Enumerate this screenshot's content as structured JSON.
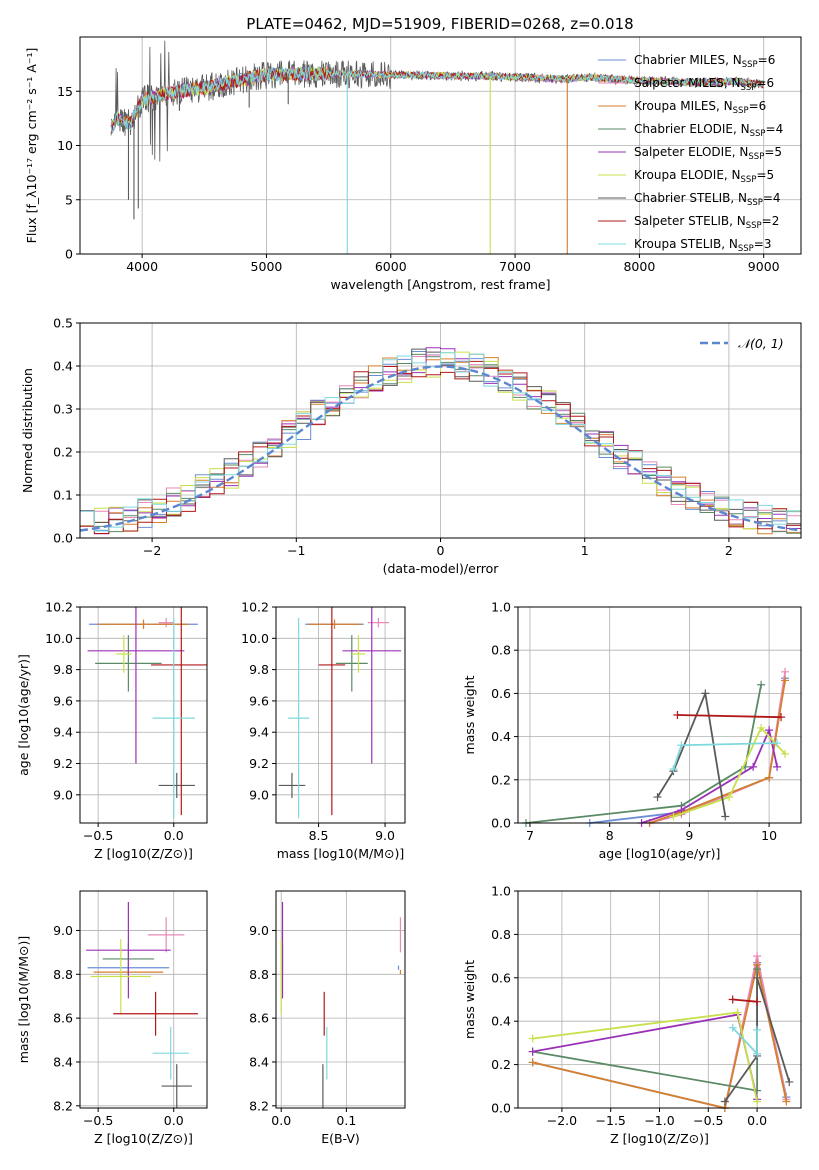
{
  "figure": {
    "suptitle": "PLATE=0462, MJD=51909, FIBERID=0268, z=0.018"
  },
  "series_colors": [
    "#6a8fd6",
    "#e889b8",
    "#d67f2c",
    "#5a8a66",
    "#9b30b8",
    "#c8e04a",
    "#5a5a5a",
    "#b01818",
    "#7fd8dc"
  ],
  "chart_data": [
    {
      "id": "spectrum",
      "type": "line",
      "title": "PLATE=0462, MJD=51909, FIBERID=0268, z=0.018",
      "xlabel": "wavelength [Angstrom, rest frame]",
      "ylabel": "Flux [f_λ10⁻¹⁷ erg cm⁻² s⁻¹ A⁻¹]",
      "xlim": [
        3500,
        9300
      ],
      "ylim": [
        0,
        20
      ],
      "xticks": [
        4000,
        5000,
        6000,
        7000,
        8000,
        9000
      ],
      "yticks": [
        0,
        5,
        10,
        15
      ],
      "legend_position": "top-right",
      "legend": [
        "Chabrier MILES, NSSP=6",
        "Salpeter MILES, NSSP=6",
        "Kroupa MILES, NSSP=6",
        "Chabrier ELODIE, NSSP=4",
        "Salpeter ELODIE, NSSP=5",
        "Kroupa ELODIE, NSSP=5",
        "Chabrier STELIB, NSSP=4",
        "Salpeter STELIB, NSSP=2",
        "Kroupa STELIB, NSSP=3"
      ],
      "legend_labels": [
        {
          "name": "Chabrier MILES, N",
          "sub": "SSP",
          "eq": "=6"
        },
        {
          "name": "Salpeter MILES, N",
          "sub": "SSP",
          "eq": "=6"
        },
        {
          "name": "Kroupa MILES, N",
          "sub": "SSP",
          "eq": "=6"
        },
        {
          "name": "Chabrier ELODIE, N",
          "sub": "SSP",
          "eq": "=4"
        },
        {
          "name": "Salpeter ELODIE, N",
          "sub": "SSP",
          "eq": "=5"
        },
        {
          "name": "Kroupa ELODIE, N",
          "sub": "SSP",
          "eq": "=5"
        },
        {
          "name": "Chabrier STELIB, N",
          "sub": "SSP",
          "eq": "=4"
        },
        {
          "name": "Salpeter STELIB, N",
          "sub": "SSP",
          "eq": "=2"
        },
        {
          "name": "Kroupa STELIB, N",
          "sub": "SSP",
          "eq": "=3"
        }
      ],
      "continuum": {
        "x": [
          3750,
          3800,
          3900,
          3950,
          4000,
          4100,
          4200,
          4300,
          4500,
          4700,
          4900,
          5000,
          5200,
          5500,
          5700,
          6000,
          6200,
          6500,
          6800,
          7000,
          7200,
          7400,
          7600,
          7800,
          8000,
          8200,
          8500,
          8800,
          9000
        ],
        "y": [
          11.5,
          12.5,
          12,
          13,
          14.2,
          14.5,
          14.8,
          15,
          15.3,
          15.8,
          16.3,
          16.5,
          16.6,
          16.6,
          16.6,
          16.5,
          16.5,
          16.4,
          16.4,
          16.3,
          16.2,
          16.1,
          16.3,
          16.1,
          16.0,
          15.9,
          15.8,
          15.9,
          15.6
        ]
      },
      "absorption_features": [
        {
          "x": 3890,
          "y": 5
        },
        {
          "x": 3934,
          "y": 3.2
        },
        {
          "x": 3969,
          "y": 4.2
        },
        {
          "x": 4101,
          "y": 11.5
        },
        {
          "x": 4300,
          "y": 13.2
        },
        {
          "x": 4861,
          "y": 13.5
        },
        {
          "x": 5175,
          "y": 13.8
        },
        {
          "x": 5650,
          "y": 0
        },
        {
          "x": 6800,
          "y": 0
        },
        {
          "x": 7420,
          "y": 0
        }
      ]
    },
    {
      "id": "residuals",
      "type": "histogram",
      "xlabel": "(data-model)/error",
      "ylabel": "Normed distribution",
      "xlim": [
        -2.5,
        2.5
      ],
      "ylim": [
        0,
        0.5
      ],
      "xticks": [
        -2,
        -1,
        0,
        1,
        2
      ],
      "yticks": [
        0.0,
        0.1,
        0.2,
        0.3,
        0.4,
        0.5
      ],
      "bin_width": 0.1,
      "reference_curve": "N(0,1)",
      "legend_position": "top-right",
      "legend": [
        "𝒩(0, 1)"
      ]
    },
    {
      "id": "age_vs_Z",
      "type": "scatter",
      "xlabel": "Z [log10(Z/Z⊙)]",
      "ylabel": "age  [log10(age/yr)]",
      "xlim": [
        -0.62,
        0.22
      ],
      "ylim": [
        8.82,
        10.2
      ],
      "xticks": [
        -0.5,
        0.0
      ],
      "yticks": [
        9.0,
        9.2,
        9.4,
        9.6,
        9.8,
        10.0,
        10.2
      ],
      "points": [
        {
          "series": 0,
          "x": -0.2,
          "xerr": 0.36,
          "y": 10.09,
          "yerr": 0.02
        },
        {
          "series": 1,
          "x": -0.05,
          "xerr": 0.05,
          "y": 10.1,
          "yerr": 0.03
        },
        {
          "series": 2,
          "x": -0.2,
          "xerr": 0.3,
          "y": 10.09,
          "yerr": 0.03
        },
        {
          "series": 3,
          "x": -0.3,
          "xerr": 0.22,
          "y": 9.84,
          "yerr": 0.18
        },
        {
          "series": 4,
          "x": -0.25,
          "xerr": 0.32,
          "y": 9.92,
          "yerr": 0.72
        },
        {
          "series": 5,
          "x": -0.33,
          "xerr": 0.05,
          "y": 9.9,
          "yerr": 0.12
        },
        {
          "series": 6,
          "x": 0.02,
          "xerr": 0.12,
          "y": 9.06,
          "yerr": 0.08
        },
        {
          "series": 7,
          "x": 0.05,
          "xerr": 0.2,
          "y": 9.83,
          "yerr": 0.96
        },
        {
          "series": 8,
          "x": 0.0,
          "xerr": 0.14,
          "y": 9.49,
          "yerr": 0.64
        }
      ]
    },
    {
      "id": "age_vs_mass",
      "type": "scatter",
      "xlabel": "mass [log10(M/M⊙)]",
      "ylabel": "",
      "xlim": [
        8.18,
        9.15
      ],
      "ylim": [
        8.82,
        10.2
      ],
      "xticks": [
        8.5,
        9.0
      ],
      "yticks": [
        9.0,
        9.2,
        9.4,
        9.6,
        9.8,
        10.0,
        10.2
      ],
      "points": [
        {
          "series": 0,
          "x": 8.62,
          "xerr": 0.22,
          "y": 10.09,
          "yerr": 0.02
        },
        {
          "series": 1,
          "x": 8.95,
          "xerr": 0.08,
          "y": 10.1,
          "yerr": 0.03
        },
        {
          "series": 2,
          "x": 8.62,
          "xerr": 0.2,
          "y": 10.09,
          "yerr": 0.03
        },
        {
          "series": 3,
          "x": 8.75,
          "xerr": 0.12,
          "y": 9.84,
          "yerr": 0.18
        },
        {
          "series": 4,
          "x": 8.9,
          "xerr": 0.22,
          "y": 9.92,
          "yerr": 0.72
        },
        {
          "series": 5,
          "x": 8.8,
          "xerr": 0.05,
          "y": 9.9,
          "yerr": 0.12
        },
        {
          "series": 6,
          "x": 8.3,
          "xerr": 0.1,
          "y": 9.06,
          "yerr": 0.08
        },
        {
          "series": 7,
          "x": 8.6,
          "xerr": 0.1,
          "y": 9.83,
          "yerr": 0.96
        },
        {
          "series": 8,
          "x": 8.35,
          "xerr": 0.08,
          "y": 9.49,
          "yerr": 0.64
        }
      ]
    },
    {
      "id": "weight_vs_age",
      "type": "line",
      "xlabel": "age  [log10(age/yr)]",
      "ylabel": "mass weight",
      "xlim": [
        6.85,
        10.4
      ],
      "ylim": [
        0,
        1.0
      ],
      "xticks": [
        7,
        8,
        9,
        10
      ],
      "yticks": [
        0.0,
        0.2,
        0.4,
        0.6,
        0.8,
        1.0
      ],
      "series": [
        {
          "x": [
            7.75,
            8.9,
            10.0,
            10.2
          ],
          "y": [
            0.0,
            0.05,
            0.21,
            0.67
          ]
        },
        {
          "x": [
            8.5,
            8.9,
            10.0,
            10.2
          ],
          "y": [
            0.0,
            0.04,
            0.21,
            0.7
          ]
        },
        {
          "x": [
            8.5,
            8.9,
            10.0,
            10.2
          ],
          "y": [
            0.0,
            0.05,
            0.21,
            0.66
          ]
        },
        {
          "x": [
            6.95,
            8.9,
            9.7,
            9.9
          ],
          "y": [
            0.0,
            0.08,
            0.26,
            0.64
          ]
        },
        {
          "x": [
            8.4,
            8.9,
            9.8,
            10.0,
            10.1
          ],
          "y": [
            0.0,
            0.06,
            0.26,
            0.43,
            0.26
          ]
        },
        {
          "x": [
            8.8,
            9.5,
            9.9,
            10.2
          ],
          "y": [
            0.03,
            0.12,
            0.44,
            0.32
          ]
        },
        {
          "x": [
            8.6,
            8.8,
            9.2,
            9.45
          ],
          "y": [
            0.12,
            0.24,
            0.6,
            0.03
          ]
        },
        {
          "x": [
            8.85,
            10.15
          ],
          "y": [
            0.5,
            0.49
          ]
        },
        {
          "x": [
            8.8,
            8.9,
            10.1
          ],
          "y": [
            0.25,
            0.36,
            0.37
          ]
        }
      ]
    },
    {
      "id": "mass_vs_Z",
      "type": "scatter",
      "xlabel": "Z [log10(Z/Z⊙)]",
      "ylabel": "mass [log10(M/M⊙)]",
      "xlim": [
        -0.62,
        0.22
      ],
      "ylim": [
        8.19,
        9.18
      ],
      "xticks": [
        -0.5,
        0.0
      ],
      "yticks": [
        8.2,
        8.4,
        8.6,
        8.8,
        9.0
      ],
      "points": [
        {
          "series": 0,
          "x": -0.3,
          "xerr": 0.27,
          "y": 8.83,
          "yerr": 0.01
        },
        {
          "series": 1,
          "x": -0.05,
          "xerr": 0.12,
          "y": 8.98,
          "yerr": 0.08
        },
        {
          "series": 2,
          "x": -0.3,
          "xerr": 0.23,
          "y": 8.81,
          "yerr": 0.01
        },
        {
          "series": 3,
          "x": -0.3,
          "xerr": 0.17,
          "y": 8.87,
          "yerr": 0.07
        },
        {
          "series": 4,
          "x": -0.3,
          "xerr": 0.28,
          "y": 8.91,
          "yerr": 0.22
        },
        {
          "series": 5,
          "x": -0.35,
          "xerr": 0.2,
          "y": 8.79,
          "yerr": 0.17
        },
        {
          "series": 6,
          "x": 0.02,
          "xerr": 0.1,
          "y": 8.29,
          "yerr": 0.1
        },
        {
          "series": 7,
          "x": -0.12,
          "xerr": 0.28,
          "y": 8.62,
          "yerr": 0.1
        },
        {
          "series": 8,
          "x": -0.02,
          "xerr": 0.12,
          "y": 8.44,
          "yerr": 0.12
        }
      ]
    },
    {
      "id": "mass_vs_ebv",
      "type": "scatter",
      "xlabel": "E(B-V)",
      "ylabel": "",
      "xlim": [
        -0.008,
        0.19
      ],
      "ylim": [
        8.19,
        9.18
      ],
      "xticks": [
        0.0,
        0.1
      ],
      "yticks": [
        8.2,
        8.4,
        8.6,
        8.8,
        9.0
      ],
      "points": [
        {
          "series": 0,
          "x": 0.18,
          "xerr": 0,
          "y": 8.83,
          "yerr": 0.01
        },
        {
          "series": 1,
          "x": 0.183,
          "xerr": 0,
          "y": 8.98,
          "yerr": 0.08
        },
        {
          "series": 2,
          "x": 0.183,
          "xerr": 0,
          "y": 8.81,
          "yerr": 0.01
        },
        {
          "series": 3,
          "x": 0.002,
          "xerr": 0,
          "y": 8.87,
          "yerr": 0.07
        },
        {
          "series": 4,
          "x": 0.002,
          "xerr": 0,
          "y": 8.91,
          "yerr": 0.22
        },
        {
          "series": 5,
          "x": 0.0,
          "xerr": 0,
          "y": 8.79,
          "yerr": 0.17
        },
        {
          "series": 6,
          "x": 0.064,
          "xerr": 0,
          "y": 8.29,
          "yerr": 0.1
        },
        {
          "series": 7,
          "x": 0.066,
          "xerr": 0,
          "y": 8.62,
          "yerr": 0.1
        },
        {
          "series": 8,
          "x": 0.07,
          "xerr": 0,
          "y": 8.44,
          "yerr": 0.12
        }
      ]
    },
    {
      "id": "weight_vs_Z",
      "type": "line",
      "xlabel": "Z [log10(Z/Z⊙)]",
      "ylabel": "mass weight",
      "xlim": [
        -2.45,
        0.45
      ],
      "ylim": [
        0,
        1.0
      ],
      "xticks": [
        -2.0,
        -1.5,
        -1.0,
        -0.5,
        0.0
      ],
      "yticks": [
        0.0,
        0.2,
        0.4,
        0.6,
        0.8,
        1.0
      ],
      "series": [
        {
          "x": [
            -2.3,
            -0.33,
            0.0,
            0.3
          ],
          "y": [
            0.21,
            0.0,
            0.67,
            0.05
          ]
        },
        {
          "x": [
            -0.33,
            0.0,
            0.3
          ],
          "y": [
            0.0,
            0.7,
            0.04
          ]
        },
        {
          "x": [
            -2.3,
            -0.33,
            0.0,
            0.3
          ],
          "y": [
            0.21,
            0.0,
            0.66,
            0.03
          ]
        },
        {
          "x": [
            -2.3,
            0.0,
            0.0
          ],
          "y": [
            0.26,
            0.08,
            0.64
          ]
        },
        {
          "x": [
            -2.3,
            -0.2,
            0.0
          ],
          "y": [
            0.26,
            0.43,
            0.04
          ]
        },
        {
          "x": [
            -2.3,
            -0.2,
            0.0
          ],
          "y": [
            0.32,
            0.44,
            0.03
          ]
        },
        {
          "x": [
            -0.33,
            0.0,
            0.0,
            0.33
          ],
          "y": [
            0.03,
            0.24,
            0.6,
            0.12
          ]
        },
        {
          "x": [
            -0.25,
            0.0
          ],
          "y": [
            0.5,
            0.49
          ]
        },
        {
          "x": [
            -0.25,
            0.0,
            0.0
          ],
          "y": [
            0.37,
            0.25,
            0.36
          ]
        }
      ]
    }
  ]
}
